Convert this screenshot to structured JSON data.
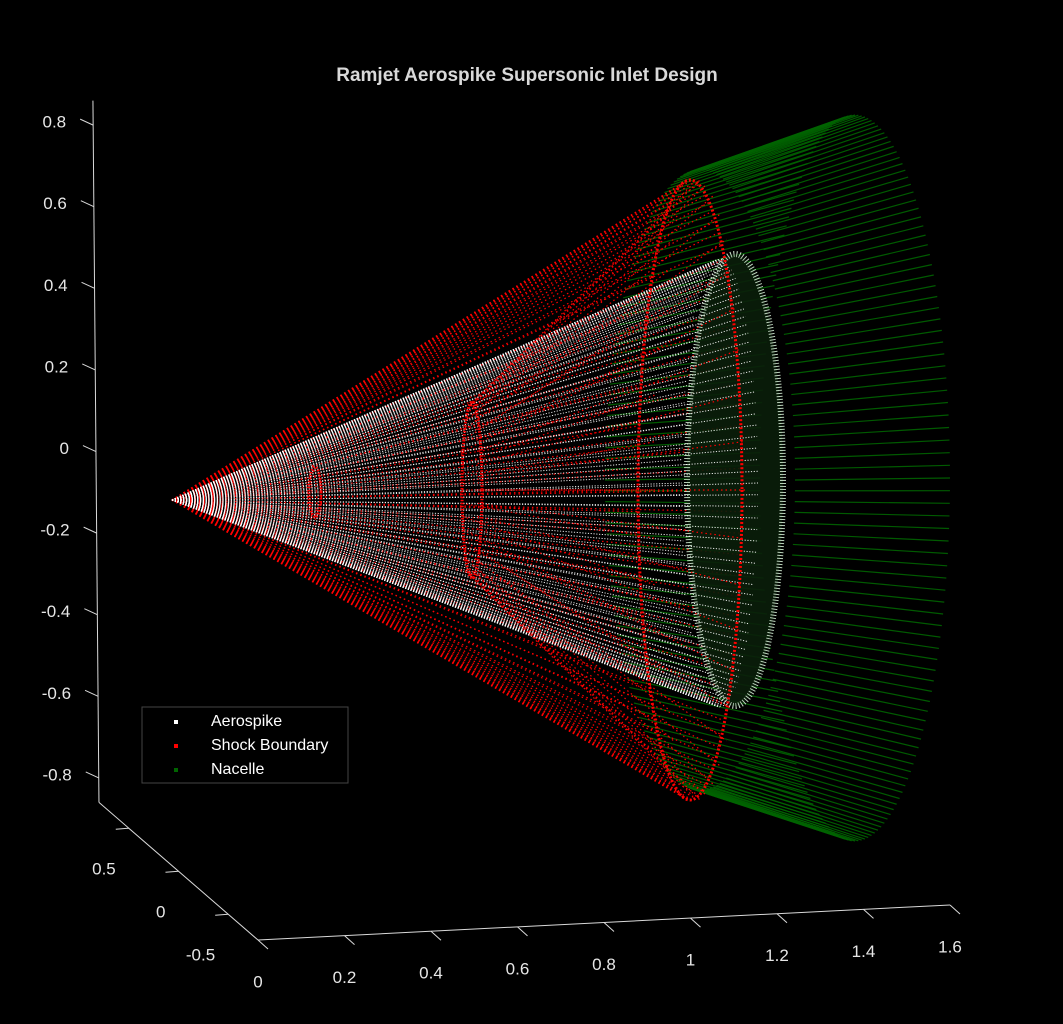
{
  "chart_data": {
    "type": "scatter3d",
    "title": "Ramjet Aerospike Supersonic Inlet Design",
    "series": [
      {
        "name": "Aerospike",
        "color": "#ffffff"
      },
      {
        "name": "Shock Boundary",
        "color": "#ff0000"
      },
      {
        "name": "Nacelle",
        "color": "#006400"
      }
    ],
    "xlim": [
      0,
      1.6
    ],
    "xticks": [
      0,
      0.2,
      0.4,
      0.6,
      0.8,
      1,
      1.2,
      1.4,
      1.6
    ],
    "ylim": [
      -0.8,
      0.8
    ],
    "yticks": [
      -0.5,
      0,
      0.5
    ],
    "zlim": [
      -0.86,
      0.86
    ],
    "zticks": [
      -0.8,
      -0.6,
      -0.4,
      -0.2,
      0,
      0.2,
      0.4,
      0.6,
      0.8
    ],
    "legend": "lower left",
    "background": "#000000"
  }
}
